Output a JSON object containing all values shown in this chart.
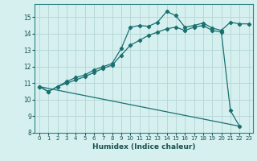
{
  "xlabel": "Humidex (Indice chaleur)",
  "bg_color": "#d6f0f0",
  "grid_color": "#b8d8d8",
  "line_color": "#1a7070",
  "xlim": [
    -0.5,
    23.5
  ],
  "ylim": [
    8,
    15.8
  ],
  "xticks": [
    0,
    1,
    2,
    3,
    4,
    5,
    6,
    7,
    8,
    9,
    10,
    11,
    12,
    13,
    14,
    15,
    16,
    17,
    18,
    19,
    20,
    21,
    22,
    23
  ],
  "yticks": [
    8,
    9,
    10,
    11,
    12,
    13,
    14,
    15
  ],
  "line1_x": [
    0,
    1,
    2,
    3,
    4,
    5,
    6,
    7,
    8,
    9,
    10,
    11,
    12,
    13,
    14,
    15,
    16,
    17,
    18,
    19,
    20,
    21,
    22,
    23
  ],
  "line1_y": [
    10.8,
    10.5,
    10.8,
    11.1,
    11.35,
    11.5,
    11.8,
    12.0,
    12.2,
    13.1,
    14.4,
    14.5,
    14.45,
    14.7,
    15.35,
    15.1,
    14.4,
    14.5,
    14.65,
    14.35,
    14.2,
    14.7,
    14.6,
    14.6
  ],
  "line2_x": [
    0,
    1,
    2,
    3,
    4,
    5,
    6,
    7,
    8,
    9,
    10,
    11,
    12,
    13,
    14,
    15,
    16,
    17,
    18,
    19,
    20,
    21,
    22
  ],
  "line2_y": [
    10.8,
    10.5,
    10.8,
    11.0,
    11.2,
    11.4,
    11.65,
    11.9,
    12.1,
    12.7,
    13.3,
    13.6,
    13.9,
    14.1,
    14.3,
    14.4,
    14.2,
    14.4,
    14.5,
    14.2,
    14.1,
    9.35,
    8.4
  ],
  "line3_x": [
    0,
    22
  ],
  "line3_y": [
    10.8,
    8.4
  ]
}
